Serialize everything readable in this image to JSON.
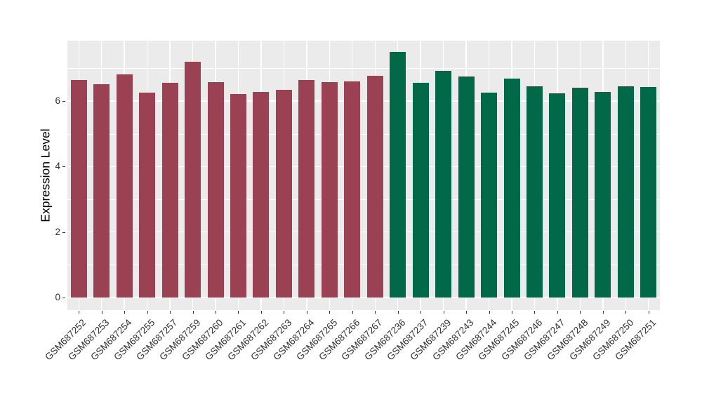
{
  "figure": {
    "background": "#FFFFFF"
  },
  "chart_data": {
    "type": "bar",
    "title": "",
    "xlabel": "",
    "ylabel": "Expression Level",
    "ylim": [
      0,
      7.9
    ],
    "yticks": [
      0,
      2,
      4,
      6
    ],
    "yticks_minor": [
      1,
      3,
      5,
      7
    ],
    "grid": "on",
    "legend": "none",
    "panel_background": "#EBEBEB",
    "grid_color": "#FFFFFF",
    "categories": [
      "GSM687252",
      "GSM687253",
      "GSM687254",
      "GSM687255",
      "GSM687257",
      "GSM687259",
      "GSM687260",
      "GSM687261",
      "GSM687262",
      "GSM687263",
      "GSM687264",
      "GSM687265",
      "GSM687266",
      "GSM687267",
      "GSM687236",
      "GSM687237",
      "GSM687239",
      "GSM687243",
      "GSM687244",
      "GSM687245",
      "GSM687246",
      "GSM687247",
      "GSM687248",
      "GSM687249",
      "GSM687250",
      "GSM687251"
    ],
    "values": [
      6.65,
      6.52,
      6.82,
      6.26,
      6.55,
      7.2,
      6.58,
      6.22,
      6.28,
      6.34,
      6.65,
      6.58,
      6.59,
      6.78,
      7.5,
      6.56,
      6.92,
      6.74,
      6.26,
      6.68,
      6.45,
      6.24,
      6.41,
      6.28,
      6.46,
      6.43
    ],
    "bar_groups": [
      "maroon",
      "maroon",
      "maroon",
      "maroon",
      "maroon",
      "maroon",
      "maroon",
      "maroon",
      "maroon",
      "maroon",
      "maroon",
      "maroon",
      "maroon",
      "maroon",
      "green",
      "green",
      "green",
      "green",
      "green",
      "green",
      "green",
      "green",
      "green",
      "green",
      "green",
      "green"
    ],
    "group_colors": {
      "maroon": "#9A4253",
      "green": "#016948"
    }
  },
  "axis_style": {
    "tick_color": "#333333",
    "tick_label_color": "#303030"
  }
}
